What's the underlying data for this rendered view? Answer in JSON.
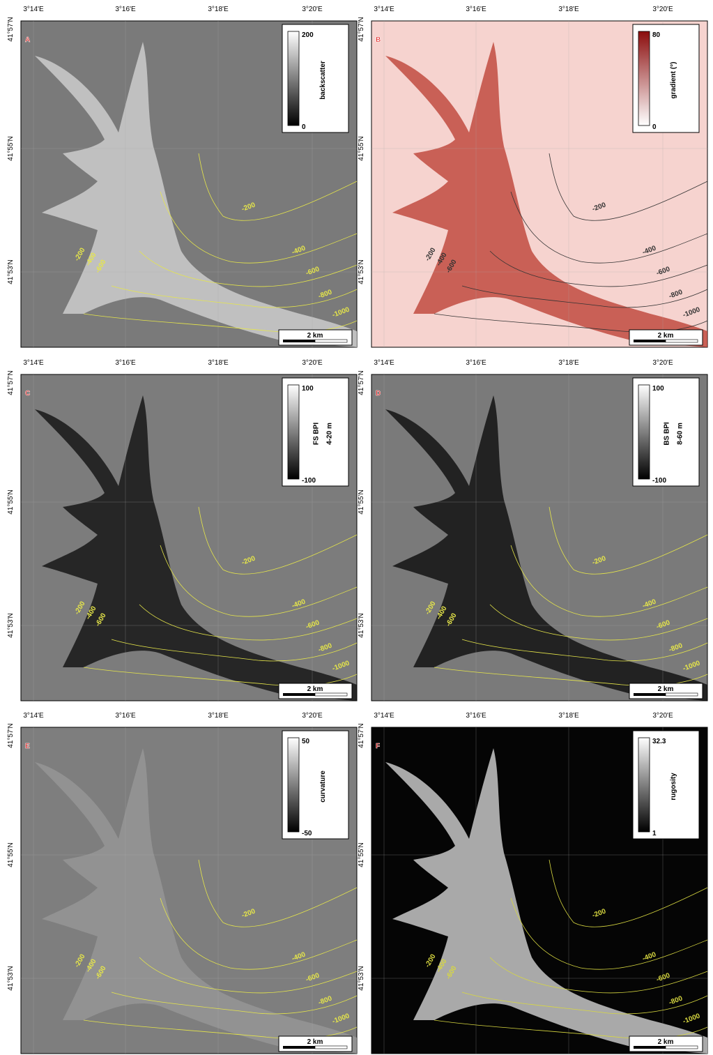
{
  "lon_labels": [
    "3°14'E",
    "3°16'E",
    "3°18'E",
    "3°20'E"
  ],
  "lat_labels": [
    "41°57'N",
    "41°55'N",
    "41°53'N"
  ],
  "scale_label": "2 km",
  "contour_labels": [
    -200,
    -400,
    -600,
    -800,
    -1000
  ],
  "panels": [
    {
      "letter": "A",
      "legend": {
        "label_lines": [
          "backscatter"
        ],
        "max": 200,
        "min": 0,
        "ramp": [
          "#000000",
          "#ffffff"
        ]
      },
      "background": "#7a7a7a",
      "feature": "#d8d8d8",
      "contour_color": "#e6e64a"
    },
    {
      "letter": "B",
      "legend": {
        "label_lines": [
          "gradient (°)"
        ],
        "max": 80,
        "min": 0,
        "ramp": [
          "#ffffff",
          "#8b0d0d"
        ]
      },
      "background": "#f6d3cf",
      "feature": "#b9392e",
      "contour_color": "#333333"
    },
    {
      "letter": "C",
      "legend": {
        "label_lines": [
          "FS BPI",
          "4-20 m"
        ],
        "max": 100,
        "min": -100,
        "ramp": [
          "#000000",
          "#ffffff"
        ]
      },
      "background": "#7c7c7c",
      "feature": "#0a0a0a",
      "contour_color": "#e6e64a"
    },
    {
      "letter": "D",
      "legend": {
        "label_lines": [
          "BS BPI",
          "8-60 m"
        ],
        "max": 100,
        "min": -100,
        "ramp": [
          "#000000",
          "#ffffff"
        ]
      },
      "background": "#7a7a7a",
      "feature": "#050505",
      "contour_color": "#e6e64a"
    },
    {
      "letter": "E",
      "legend": {
        "label_lines": [
          "curvature"
        ],
        "max": 50,
        "min": -50,
        "ramp": [
          "#000000",
          "#ffffff"
        ]
      },
      "background": "#7e7e7e",
      "feature": "#9a9a9a",
      "contour_color": "#e6e64a"
    },
    {
      "letter": "F",
      "legend": {
        "label_lines": [
          "rugosity"
        ],
        "max": 32.3,
        "min": 1,
        "ramp": [
          "#000000",
          "#ffffff"
        ]
      },
      "background": "#050505",
      "feature": "#e0e0e0",
      "contour_color": "#d8d840"
    }
  ]
}
